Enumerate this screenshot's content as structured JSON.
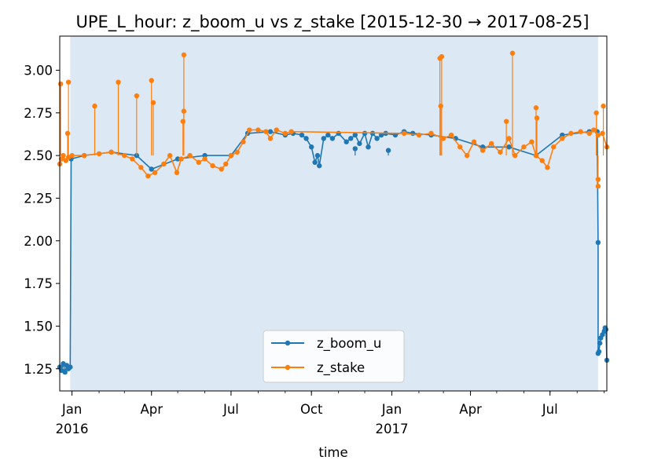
{
  "chart_data": {
    "type": "line",
    "title": "UPE_L_hour: z_boom_u vs z_stake  [2015-12-30 → 2017-08-25]",
    "xlabel": "time",
    "ylabel": "",
    "xlim": [
      "2015-12-18",
      "2017-09-04"
    ],
    "ylim": [
      1.12,
      3.2
    ],
    "shaded_span": [
      "2015-12-30",
      "2017-08-25"
    ],
    "legend_position": "lower-center",
    "grid": false,
    "x_ticks": [
      {
        "date": "2016-01-01",
        "label": "Jan",
        "sublabel": "2016"
      },
      {
        "date": "2016-04-01",
        "label": "Apr",
        "sublabel": ""
      },
      {
        "date": "2016-07-01",
        "label": "Jul",
        "sublabel": ""
      },
      {
        "date": "2016-10-01",
        "label": "Oct",
        "sublabel": ""
      },
      {
        "date": "2017-01-01",
        "label": "Jan",
        "sublabel": "2017"
      },
      {
        "date": "2017-04-01",
        "label": "Apr",
        "sublabel": ""
      },
      {
        "date": "2017-07-01",
        "label": "Jul",
        "sublabel": ""
      }
    ],
    "y_ticks": [
      {
        "value": 1.25,
        "label": "1.25"
      },
      {
        "value": 1.5,
        "label": "1.50"
      },
      {
        "value": 1.75,
        "label": "1.75"
      },
      {
        "value": 2.0,
        "label": "2.00"
      },
      {
        "value": 2.25,
        "label": "2.25"
      },
      {
        "value": 2.5,
        "label": "2.50"
      },
      {
        "value": 2.75,
        "label": "2.75"
      },
      {
        "value": 3.0,
        "label": "3.00"
      }
    ],
    "series": [
      {
        "name": "z_boom_u",
        "color": "#1f77b4",
        "points": [
          [
            "2015-12-18",
            1.26
          ],
          [
            "2015-12-20",
            1.24
          ],
          [
            "2015-12-22",
            1.28
          ],
          [
            "2015-12-24",
            1.23
          ],
          [
            "2015-12-26",
            1.27
          ],
          [
            "2015-12-28",
            1.25
          ],
          [
            "2015-12-30",
            1.26
          ],
          [
            "2015-12-31",
            2.48
          ],
          [
            "2016-01-15",
            2.5
          ],
          [
            "2016-02-15",
            2.52
          ],
          [
            "2016-03-15",
            2.5
          ],
          [
            "2016-04-01",
            2.42
          ],
          [
            "2016-05-01",
            2.48
          ],
          [
            "2016-06-01",
            2.5
          ],
          [
            "2016-07-01",
            2.5
          ],
          [
            "2016-07-20",
            2.63
          ],
          [
            "2016-08-15",
            2.64
          ],
          [
            "2016-09-01",
            2.62
          ],
          [
            "2016-09-10",
            2.63
          ],
          [
            "2016-09-20",
            2.62
          ],
          [
            "2016-09-25",
            2.6
          ],
          [
            "2016-10-01",
            2.55
          ],
          [
            "2016-10-05",
            2.46
          ],
          [
            "2016-10-08",
            2.5
          ],
          [
            "2016-10-10",
            2.44
          ],
          [
            "2016-10-15",
            2.6
          ],
          [
            "2016-10-20",
            2.62
          ],
          [
            "2016-10-25",
            2.6
          ],
          [
            "2016-11-01",
            2.63
          ],
          [
            "2016-11-10",
            2.58
          ],
          [
            "2016-11-15",
            2.6
          ],
          [
            "2016-11-20",
            2.62
          ],
          [
            "2016-11-25",
            2.57
          ],
          [
            "2016-12-01",
            2.63
          ],
          [
            "2016-12-05",
            2.55
          ],
          [
            "2016-12-10",
            2.63
          ],
          [
            "2016-12-15",
            2.6
          ],
          [
            "2016-12-20",
            2.62
          ],
          [
            "2016-12-25",
            2.63
          ],
          [
            "2017-01-05",
            2.62
          ],
          [
            "2017-01-15",
            2.64
          ],
          [
            "2017-01-25",
            2.63
          ],
          [
            "2017-02-15",
            2.62
          ],
          [
            "2017-03-15",
            2.6
          ],
          [
            "2017-04-15",
            2.55
          ],
          [
            "2017-05-15",
            2.55
          ],
          [
            "2017-06-15",
            2.5
          ],
          [
            "2017-07-15",
            2.62
          ],
          [
            "2017-08-15",
            2.64
          ],
          [
            "2017-08-24",
            2.64
          ],
          [
            "2017-08-25",
            1.99
          ],
          [
            "2017-08-25",
            1.34
          ],
          [
            "2017-08-26",
            1.35
          ],
          [
            "2017-08-27",
            1.4
          ],
          [
            "2017-08-28",
            1.43
          ],
          [
            "2017-08-30",
            1.45
          ],
          [
            "2017-09-01",
            1.47
          ],
          [
            "2017-09-02",
            1.49
          ],
          [
            "2017-09-03",
            1.48
          ],
          [
            "2017-09-04",
            1.3
          ]
        ],
        "spikes": [
          [
            "2016-11-20",
            2.54
          ],
          [
            "2016-12-28",
            2.53
          ]
        ]
      },
      {
        "name": "z_stake",
        "color": "#ff7f0e",
        "points": [
          [
            "2015-12-18",
            2.45
          ],
          [
            "2015-12-20",
            2.48
          ],
          [
            "2015-12-22",
            2.5
          ],
          [
            "2015-12-25",
            2.47
          ],
          [
            "2015-12-28",
            2.49
          ],
          [
            "2016-01-01",
            2.5
          ],
          [
            "2016-01-15",
            2.5
          ],
          [
            "2016-02-01",
            2.51
          ],
          [
            "2016-02-15",
            2.52
          ],
          [
            "2016-03-01",
            2.5
          ],
          [
            "2016-03-10",
            2.48
          ],
          [
            "2016-03-20",
            2.43
          ],
          [
            "2016-03-28",
            2.38
          ],
          [
            "2016-04-05",
            2.4
          ],
          [
            "2016-04-15",
            2.45
          ],
          [
            "2016-04-22",
            2.5
          ],
          [
            "2016-04-30",
            2.4
          ],
          [
            "2016-05-05",
            2.48
          ],
          [
            "2016-05-15",
            2.5
          ],
          [
            "2016-05-25",
            2.46
          ],
          [
            "2016-06-01",
            2.48
          ],
          [
            "2016-06-10",
            2.44
          ],
          [
            "2016-06-20",
            2.42
          ],
          [
            "2016-06-25",
            2.45
          ],
          [
            "2016-07-01",
            2.5
          ],
          [
            "2016-07-08",
            2.52
          ],
          [
            "2016-07-15",
            2.58
          ],
          [
            "2016-07-22",
            2.65
          ],
          [
            "2016-08-01",
            2.65
          ],
          [
            "2016-08-10",
            2.64
          ],
          [
            "2016-08-15",
            2.6
          ],
          [
            "2016-08-22",
            2.65
          ],
          [
            "2016-09-01",
            2.63
          ],
          [
            "2016-09-08",
            2.64
          ],
          [
            "2017-01-15",
            2.63
          ],
          [
            "2017-02-01",
            2.62
          ],
          [
            "2017-02-15",
            2.63
          ],
          [
            "2017-03-01",
            2.6
          ],
          [
            "2017-03-10",
            2.62
          ],
          [
            "2017-03-20",
            2.55
          ],
          [
            "2017-03-28",
            2.5
          ],
          [
            "2017-04-05",
            2.58
          ],
          [
            "2017-04-15",
            2.53
          ],
          [
            "2017-04-25",
            2.57
          ],
          [
            "2017-05-05",
            2.52
          ],
          [
            "2017-05-15",
            2.6
          ],
          [
            "2017-05-22",
            2.5
          ],
          [
            "2017-06-01",
            2.55
          ],
          [
            "2017-06-10",
            2.58
          ],
          [
            "2017-06-15",
            2.5
          ],
          [
            "2017-06-22",
            2.47
          ],
          [
            "2017-06-28",
            2.43
          ],
          [
            "2017-07-05",
            2.55
          ],
          [
            "2017-07-15",
            2.6
          ],
          [
            "2017-07-25",
            2.63
          ],
          [
            "2017-08-05",
            2.64
          ],
          [
            "2017-08-15",
            2.63
          ],
          [
            "2017-08-20",
            2.65
          ],
          [
            "2017-08-25",
            2.62
          ],
          [
            "2017-08-30",
            2.63
          ],
          [
            "2017-09-04",
            2.55
          ]
        ],
        "spikes": [
          [
            "2015-12-19",
            2.92
          ],
          [
            "2015-12-28",
            2.93
          ],
          [
            "2015-12-27",
            2.63
          ],
          [
            "2016-01-27",
            2.79
          ],
          [
            "2016-02-23",
            2.93
          ],
          [
            "2016-03-15",
            2.85
          ],
          [
            "2016-04-01",
            2.94
          ],
          [
            "2016-04-03",
            2.81
          ],
          [
            "2016-05-08",
            3.09
          ],
          [
            "2016-05-07",
            2.7
          ],
          [
            "2016-05-08",
            2.76
          ],
          [
            "2017-02-25",
            3.07
          ],
          [
            "2017-02-27",
            3.08
          ],
          [
            "2017-02-26",
            2.79
          ],
          [
            "2017-05-19",
            3.1
          ],
          [
            "2017-05-12",
            2.7
          ],
          [
            "2017-06-15",
            2.78
          ],
          [
            "2017-06-16",
            2.72
          ],
          [
            "2017-08-23",
            2.75
          ],
          [
            "2017-08-25",
            2.36
          ],
          [
            "2017-08-25",
            2.32
          ],
          [
            "2017-08-31",
            2.79
          ]
        ]
      }
    ]
  }
}
